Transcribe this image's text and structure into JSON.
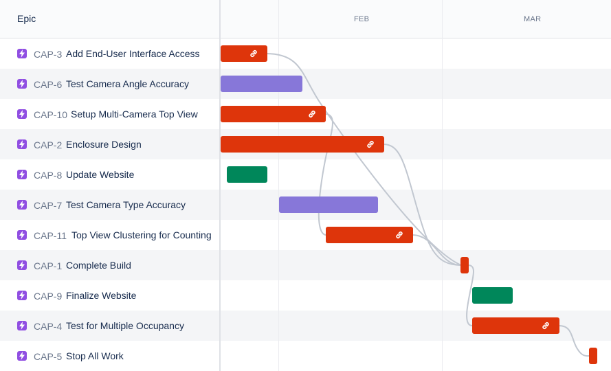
{
  "list": {
    "header": "Epic",
    "items": [
      {
        "key": "CAP-3",
        "title": "Add End-User Interface Access"
      },
      {
        "key": "CAP-6",
        "title": "Test Camera Angle Accuracy"
      },
      {
        "key": "CAP-10",
        "title": "Setup Multi-Camera Top View"
      },
      {
        "key": "CAP-2",
        "title": "Enclosure Design"
      },
      {
        "key": "CAP-8",
        "title": "Update Website"
      },
      {
        "key": "CAP-7",
        "title": "Test Camera Type Accuracy"
      },
      {
        "key": "CAP-11",
        "title": "Top View Clustering for Counting"
      },
      {
        "key": "CAP-1",
        "title": "Complete Build"
      },
      {
        "key": "CAP-9",
        "title": "Finalize Website"
      },
      {
        "key": "CAP-4",
        "title": "Test for Multiple Occupancy"
      },
      {
        "key": "CAP-5",
        "title": "Stop All Work"
      }
    ]
  },
  "timeline": {
    "months": [
      "FEB",
      "MAR"
    ]
  },
  "colors": {
    "epic_icon": "#904ee2",
    "bar_red": "#de350b",
    "bar_purple": "#8777d9",
    "bar_green": "#00875a",
    "dependency_line": "#c1c7d0"
  },
  "icons": {
    "epic": "lightning-icon",
    "dependency": "link-icon"
  }
}
